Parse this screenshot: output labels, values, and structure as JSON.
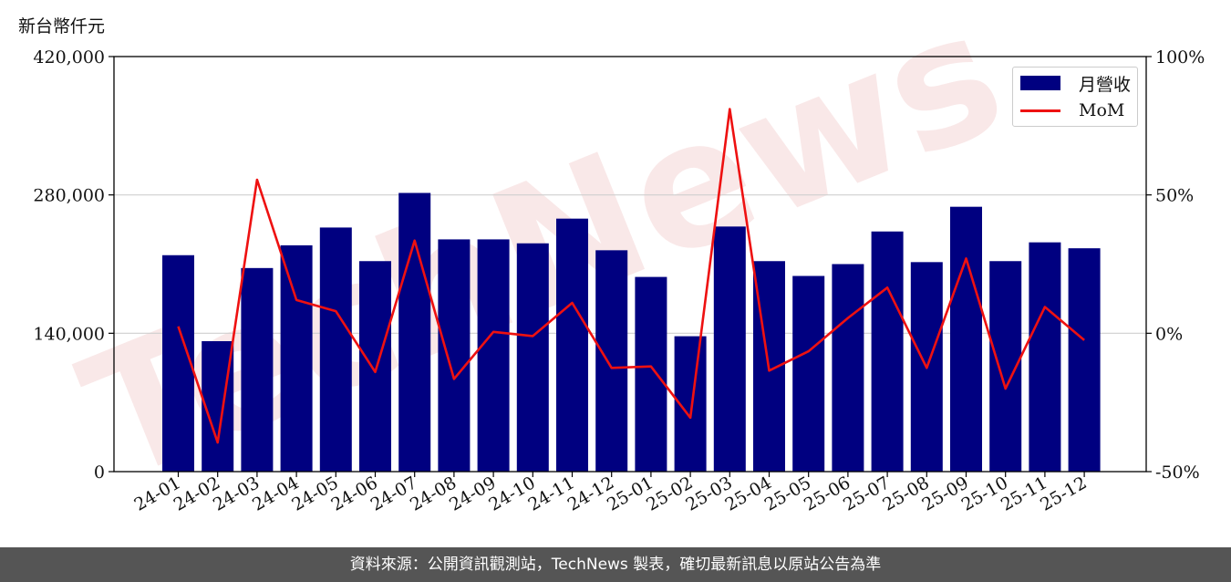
{
  "unit_label": "新台幣仟元",
  "footer_text": "資料來源：公開資訊觀測站，TechNews 製表，確切最新訊息以原站公告為準",
  "watermark_text": "TechNews",
  "colors": {
    "bar": "#000080",
    "line": "#ee1111",
    "footer_bg": "#555555",
    "watermark": "#f5d6d6"
  },
  "chart_data": {
    "type": "bar",
    "categories": [
      "24-01",
      "24-02",
      "24-03",
      "24-04",
      "24-05",
      "24-06",
      "24-07",
      "24-08",
      "24-09",
      "24-10",
      "24-11",
      "24-12",
      "25-01",
      "25-02",
      "25-03",
      "25-04",
      "25-05",
      "25-06",
      "25-07",
      "25-08",
      "25-09",
      "25-10",
      "25-11",
      "25-12"
    ],
    "series": [
      {
        "name": "月營收",
        "type": "bar",
        "axis": "left",
        "values": [
          219000,
          132000,
          206000,
          229000,
          247000,
          213000,
          282000,
          235000,
          235000,
          231000,
          256000,
          224000,
          197000,
          137000,
          248000,
          213000,
          198000,
          210000,
          243000,
          212000,
          268000,
          213000,
          232000,
          226000
        ]
      },
      {
        "name": "MoM",
        "type": "line",
        "axis": "right",
        "values": [
          2.5,
          -39.5,
          55.5,
          12,
          8,
          -14,
          33.5,
          -16.5,
          0.5,
          -1,
          11,
          -12.5,
          -12,
          -30.5,
          81,
          -13.5,
          -6.5,
          5.5,
          16.5,
          -12.5,
          27,
          -20,
          9.5,
          -2.5
        ]
      }
    ],
    "left_axis": {
      "min": 0,
      "max": 420000,
      "ticks": [
        0,
        140000,
        280000,
        420000
      ],
      "tick_labels": [
        "0",
        "140,000",
        "280,000",
        "420,000"
      ]
    },
    "right_axis": {
      "min": -50,
      "max": 100,
      "ticks": [
        -50,
        0,
        50,
        100
      ],
      "tick_labels": [
        "-50%",
        "0%",
        "50%",
        "100%"
      ]
    },
    "grid": "horizontal",
    "legend_position": "top-right"
  }
}
